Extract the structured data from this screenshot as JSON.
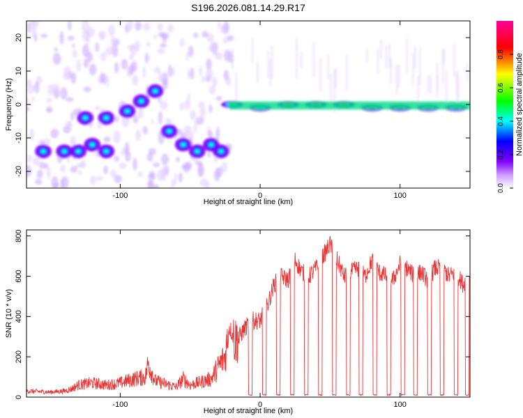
{
  "title": "S196.2026.081.14.29.R17",
  "chart_data": [
    {
      "type": "heatmap",
      "xlabel": "Height of straight line (km)",
      "ylabel": "Frequency (Hz)",
      "xlim": [
        -167,
        150
      ],
      "ylim": [
        -25,
        25
      ],
      "x_ticks": [
        -100,
        0,
        100
      ],
      "y_ticks": [
        -20,
        -10,
        0,
        10,
        20
      ],
      "colorbar": {
        "label": "Normalized spectral amplitude",
        "range": [
          0,
          1
        ],
        "ticks": [
          "0.0",
          "0.2",
          "0.4",
          "0.6",
          "0.8"
        ],
        "tick_values": [
          0,
          0.2,
          0.4,
          0.6,
          0.8
        ],
        "colors": [
          "#ffffff",
          "#8000ff",
          "#0000ff",
          "#00ffff",
          "#00ff00",
          "#ffff00",
          "#ff0000",
          "#ff00aa"
        ]
      },
      "ridge": [
        {
          "x": -155,
          "y": -14
        },
        {
          "x": -140,
          "y": -14
        },
        {
          "x": -130,
          "y": -14
        },
        {
          "x": -120,
          "y": -12
        },
        {
          "x": -110,
          "y": -14
        },
        {
          "x": -125,
          "y": -4
        },
        {
          "x": -110,
          "y": -4
        },
        {
          "x": -95,
          "y": -2
        },
        {
          "x": -85,
          "y": 1
        },
        {
          "x": -75,
          "y": 4
        },
        {
          "x": -65,
          "y": -8
        },
        {
          "x": -55,
          "y": -12
        },
        {
          "x": -45,
          "y": -14
        },
        {
          "x": -35,
          "y": -12
        },
        {
          "x": -28,
          "y": -14
        },
        {
          "x": -20,
          "y": 0
        },
        {
          "x": 0,
          "y": -1
        },
        {
          "x": 20,
          "y": 0
        },
        {
          "x": 40,
          "y": 0
        },
        {
          "x": 60,
          "y": 0
        },
        {
          "x": 80,
          "y": -1
        },
        {
          "x": 100,
          "y": -1
        },
        {
          "x": 120,
          "y": -1
        },
        {
          "x": 140,
          "y": -1
        }
      ]
    },
    {
      "type": "line",
      "xlabel": "Height of straight line (km)",
      "ylabel": "SNR (10 * v/v)",
      "xlim": [
        -167,
        150
      ],
      "ylim": [
        0,
        830
      ],
      "x_ticks": [
        -100,
        0,
        100
      ],
      "y_ticks": [
        0,
        200,
        400,
        600,
        800
      ],
      "line_color": "#ee3333",
      "series": [
        {
          "x": [
            -167,
            -150,
            -140,
            -135,
            -130,
            -120,
            -110,
            -100,
            -90,
            -82,
            -80,
            -75,
            -70,
            -60,
            -55,
            -50,
            -40,
            -35,
            -30,
            -25,
            -22,
            -18,
            -15,
            -10,
            -5,
            0,
            5,
            10,
            15,
            20,
            25,
            30,
            35,
            40,
            45,
            50,
            55,
            60,
            65,
            70,
            75,
            80,
            85,
            90,
            95,
            100,
            105,
            110,
            115,
            120,
            125,
            130,
            135,
            140,
            145,
            150
          ],
          "values": [
            30,
            25,
            30,
            40,
            60,
            70,
            60,
            70,
            90,
            100,
            170,
            80,
            70,
            50,
            90,
            60,
            80,
            90,
            150,
            200,
            350,
            280,
            300,
            350,
            380,
            380,
            450,
            560,
            600,
            580,
            680,
            620,
            600,
            640,
            700,
            760,
            680,
            600,
            620,
            640,
            600,
            680,
            620,
            600,
            580,
            660,
            640,
            600,
            620,
            580,
            640,
            640,
            600,
            620,
            560,
            600
          ]
        }
      ],
      "dropouts_x": [
        -7,
        3,
        13,
        23,
        33,
        43,
        53,
        63,
        72,
        82,
        92,
        102,
        111,
        121,
        130,
        140,
        148
      ]
    }
  ]
}
